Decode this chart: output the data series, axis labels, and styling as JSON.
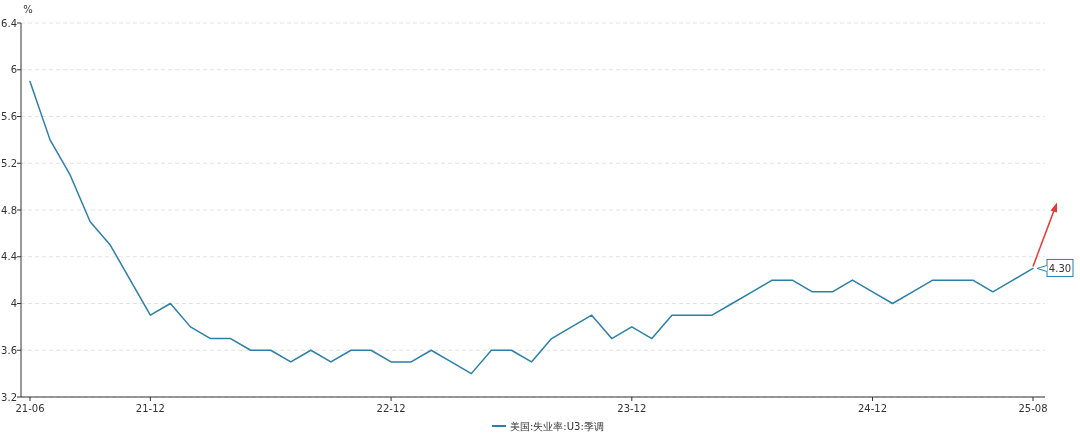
{
  "chart_data": {
    "type": "line",
    "ylabel": "%",
    "categories": [
      "21-06",
      null,
      null,
      null,
      null,
      null,
      "21-12",
      null,
      null,
      null,
      null,
      null,
      null,
      null,
      null,
      null,
      null,
      null,
      "22-12",
      null,
      null,
      null,
      null,
      null,
      null,
      null,
      null,
      null,
      null,
      null,
      "23-12",
      null,
      null,
      null,
      null,
      null,
      null,
      null,
      null,
      null,
      null,
      null,
      "24-12",
      null,
      null,
      null,
      null,
      null,
      null,
      null,
      "25-08"
    ],
    "series": [
      {
        "name": "美国:失业率:U3:季调",
        "color": "#2b7fa8",
        "values": [
          5.9,
          5.4,
          5.1,
          4.7,
          4.5,
          4.2,
          3.9,
          4.0,
          3.8,
          3.7,
          3.7,
          3.6,
          3.6,
          3.5,
          3.6,
          3.5,
          3.6,
          3.6,
          3.5,
          3.5,
          3.6,
          3.5,
          3.4,
          3.6,
          3.6,
          3.5,
          3.7,
          3.8,
          3.9,
          3.7,
          3.8,
          3.7,
          3.9,
          3.9,
          3.9,
          4.0,
          4.1,
          4.2,
          4.2,
          4.1,
          4.1,
          4.2,
          4.1,
          4.0,
          4.1,
          4.2,
          4.2,
          4.2,
          4.1,
          4.2,
          4.3
        ]
      }
    ],
    "ylim": [
      3.2,
      6.4
    ],
    "yticks": [
      3.2,
      3.6,
      4,
      4.4,
      4.8,
      5.2,
      5.6,
      6,
      6.4
    ],
    "grid": "y",
    "legend": "bottom",
    "marker": "none",
    "line_style": "solid",
    "annotations": [
      {
        "text": "4.30",
        "x": "25-08",
        "y": 4.3
      }
    ]
  }
}
